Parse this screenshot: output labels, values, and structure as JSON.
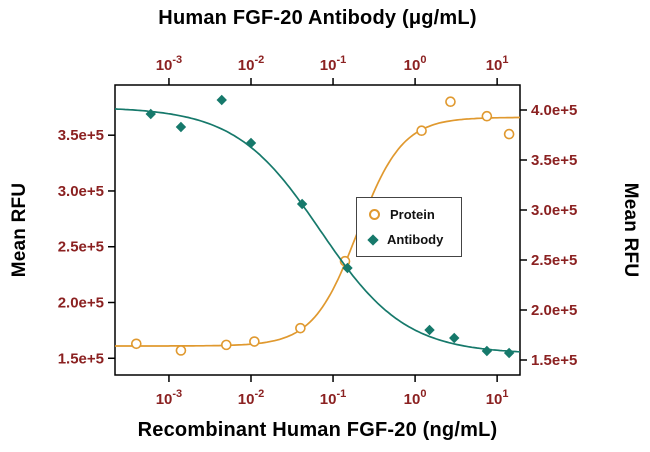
{
  "chart_data": {
    "type": "scatter",
    "subtype": "dose-response with 4PL fitted sigmoid curves",
    "title_top_axis": "Human FGF-20 Antibody (μg/mL)",
    "xlabel_bottom": "Recombinant Human FGF-20 (ng/mL)",
    "ylabel_left": "Mean RFU",
    "ylabel_right": "Mean RFU",
    "x_scale": "log10",
    "x_range": [
      0.00022,
      19
    ],
    "x_tick_exponents": [
      -3,
      -2,
      -1,
      0,
      1
    ],
    "left_axis": {
      "range": [
        135000,
        395000
      ],
      "ticks": [
        {
          "value": 150000,
          "label": "1.5e+5"
        },
        {
          "value": 200000,
          "label": "2.0e+5"
        },
        {
          "value": 250000,
          "label": "2.5e+5"
        },
        {
          "value": 300000,
          "label": "3.0e+5"
        },
        {
          "value": 350000,
          "label": "3.5e+5"
        }
      ]
    },
    "right_axis": {
      "range": [
        135000,
        425000
      ],
      "ticks": [
        {
          "value": 150000,
          "label": "1.5e+5"
        },
        {
          "value": 200000,
          "label": "2.0e+5"
        },
        {
          "value": 250000,
          "label": "2.5e+5"
        },
        {
          "value": 300000,
          "label": "3.0e+5"
        },
        {
          "value": 350000,
          "label": "3.5e+5"
        },
        {
          "value": 400000,
          "label": "4.0e+5"
        }
      ]
    },
    "grid": false,
    "legend": {
      "position": "center-right",
      "entries": [
        "Protein",
        "Antibody"
      ]
    },
    "colors": {
      "protein": "#E0992F",
      "antibody": "#16796B",
      "tick_label": "#8B2121",
      "axis": "#000000",
      "background": "#FFFFFF"
    },
    "series": [
      {
        "name": "Protein",
        "axis": "left",
        "x_axis": "bottom",
        "units": "ng/mL",
        "marker": "open-circle",
        "color": "#E0992F",
        "x": [
          0.0004,
          0.0014,
          0.005,
          0.011,
          0.04,
          0.14,
          1.2,
          2.7,
          7.5,
          14
        ],
        "y": [
          163000,
          157000,
          162000,
          165000,
          177000,
          237000,
          354000,
          380000,
          367000,
          351000
        ],
        "fit": {
          "model": "4PL",
          "bottom": 161000,
          "top": 366000,
          "ec50": 0.2,
          "hill": 1.6
        }
      },
      {
        "name": "Antibody",
        "axis": "right",
        "x_axis": "top",
        "units": "μg/mL",
        "marker": "filled-diamond",
        "color": "#16796B",
        "x": [
          0.0006,
          0.0014,
          0.0044,
          0.01,
          0.042,
          0.15,
          1.5,
          3,
          7.5,
          14
        ],
        "y": [
          396000,
          383000,
          410000,
          367000,
          306000,
          242000,
          180000,
          172000,
          159000,
          157000
        ],
        "fit": {
          "model": "4PL",
          "bottom": 156000,
          "top": 403000,
          "ec50": 0.07,
          "hill": -0.84
        }
      }
    ]
  }
}
